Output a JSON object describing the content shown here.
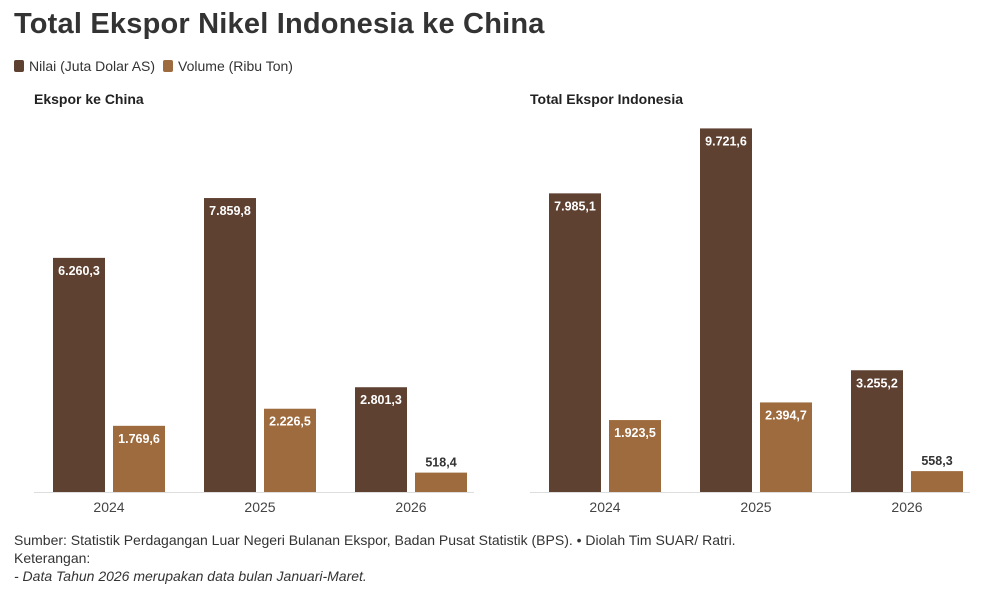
{
  "title": "Total Ekspor Nikel Indonesia ke China",
  "legend": [
    {
      "label": "Nilai (Juta Dolar AS)",
      "color": "#5e4131"
    },
    {
      "label": "Volume (Ribu Ton)",
      "color": "#9e6b3e"
    }
  ],
  "chart_data": [
    {
      "type": "bar",
      "title": "Ekspor ke China",
      "categories": [
        "2024",
        "2025",
        "2026"
      ],
      "series": [
        {
          "name": "Nilai (Juta Dolar AS)",
          "values": [
            6260.3,
            7859.8,
            2801.3
          ],
          "labels": [
            "6.260,3",
            "7.859,8",
            "2.801,3"
          ],
          "color": "#5e4131"
        },
        {
          "name": "Volume (Ribu Ton)",
          "values": [
            1769.6,
            2226.5,
            518.4
          ],
          "labels": [
            "1.769,6",
            "2.226,5",
            "518,4"
          ],
          "color": "#9e6b3e"
        }
      ],
      "ylim": [
        0,
        10000
      ],
      "grid": false
    },
    {
      "type": "bar",
      "title": "Total Ekspor Indonesia",
      "categories": [
        "2024",
        "2025",
        "2026"
      ],
      "series": [
        {
          "name": "Nilai (Juta Dolar AS)",
          "values": [
            7985.1,
            9721.6,
            3255.2
          ],
          "labels": [
            "7.985,1",
            "9.721,6",
            "3.255,2"
          ],
          "color": "#5e4131"
        },
        {
          "name": "Volume (Ribu Ton)",
          "values": [
            1923.5,
            2394.7,
            558.3
          ],
          "labels": [
            "1.923,5",
            "2.394,7",
            "558,3"
          ],
          "color": "#9e6b3e"
        }
      ],
      "ylim": [
        0,
        10000
      ],
      "grid": false
    }
  ],
  "footer": {
    "source": "Sumber: Statistik Perdagangan Luar Negeri Bulanan Ekspor, Badan Pusat Statistik (BPS). • Diolah Tim SUAR/ Ratri.",
    "keterangan": "Keterangan:",
    "note": "- Data Tahun 2026 merupakan data bulan Januari-Maret."
  }
}
